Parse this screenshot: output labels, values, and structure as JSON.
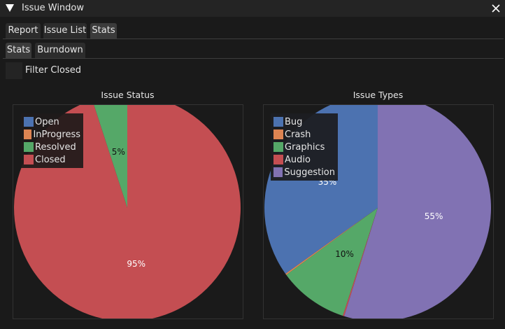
{
  "window": {
    "title": "Issue Window",
    "close_icon": "close-icon",
    "collapse_icon": "triangle-down-icon"
  },
  "tabs": [
    {
      "label": "Report",
      "active": false
    },
    {
      "label": "Issue List",
      "active": false
    },
    {
      "label": "Stats",
      "active": true
    }
  ],
  "subtabs": [
    {
      "label": "Stats",
      "active": true
    },
    {
      "label": "Burndown",
      "active": false
    }
  ],
  "filter": {
    "label": "Filter Closed",
    "checked": false
  },
  "colors": {
    "blue": "#4c72b0",
    "orange": "#dd8452",
    "green": "#55a868",
    "red": "#c44e52",
    "purple": "#8172b3",
    "background": "#1a1a1a",
    "frame": "#333333"
  },
  "chart_data": [
    {
      "type": "pie",
      "title": "Issue Status",
      "categories": [
        "Open",
        "InProgress",
        "Resolved",
        "Closed"
      ],
      "values": [
        0,
        0,
        5,
        95
      ],
      "labels": [
        "",
        "",
        "5%",
        "95%"
      ],
      "colors": [
        "#4c72b0",
        "#dd8452",
        "#55a868",
        "#c44e52"
      ],
      "legend_position": "top-left",
      "start_angle_deg": 90,
      "direction": "counter-clockwise"
    },
    {
      "type": "pie",
      "title": "Issue Types",
      "categories": [
        "Bug",
        "Crash",
        "Graphics",
        "Audio",
        "Suggestion"
      ],
      "values": [
        35,
        0.2,
        10,
        0.2,
        55
      ],
      "labels": [
        "35%",
        "",
        "10%",
        "",
        "55%"
      ],
      "colors": [
        "#4c72b0",
        "#dd8452",
        "#55a868",
        "#c44e52",
        "#8172b3"
      ],
      "legend_position": "top-left",
      "start_angle_deg": 90,
      "direction": "counter-clockwise"
    }
  ]
}
